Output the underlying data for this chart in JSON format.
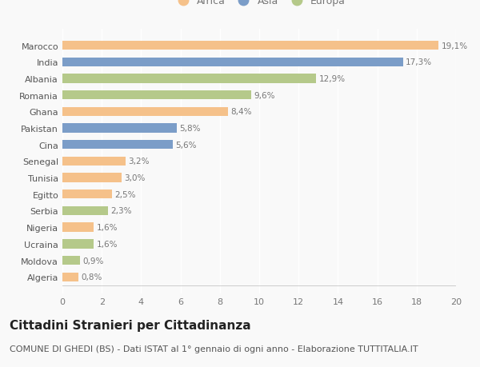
{
  "categories": [
    "Algeria",
    "Moldova",
    "Ucraina",
    "Nigeria",
    "Serbia",
    "Egitto",
    "Tunisia",
    "Senegal",
    "Cina",
    "Pakistan",
    "Ghana",
    "Romania",
    "Albania",
    "India",
    "Marocco"
  ],
  "values": [
    0.8,
    0.9,
    1.6,
    1.6,
    2.3,
    2.5,
    3.0,
    3.2,
    5.6,
    5.8,
    8.4,
    9.6,
    12.9,
    17.3,
    19.1
  ],
  "labels": [
    "0,8%",
    "0,9%",
    "1,6%",
    "1,6%",
    "2,3%",
    "2,5%",
    "3,0%",
    "3,2%",
    "5,6%",
    "5,8%",
    "8,4%",
    "9,6%",
    "12,9%",
    "17,3%",
    "19,1%"
  ],
  "continents": [
    "Africa",
    "Europa",
    "Europa",
    "Africa",
    "Europa",
    "Africa",
    "Africa",
    "Africa",
    "Asia",
    "Asia",
    "Africa",
    "Europa",
    "Europa",
    "Asia",
    "Africa"
  ],
  "colors": {
    "Africa": "#F5C18A",
    "Asia": "#7B9DC8",
    "Europa": "#B5C98A"
  },
  "xlim": [
    0,
    20
  ],
  "xticks": [
    0,
    2,
    4,
    6,
    8,
    10,
    12,
    14,
    16,
    18,
    20
  ],
  "title": "Cittadini Stranieri per Cittadinanza",
  "subtitle": "COMUNE DI GHEDI (BS) - Dati ISTAT al 1° gennaio di ogni anno - Elaborazione TUTTITALIA.IT",
  "background_color": "#f9f9f9",
  "bar_height": 0.55,
  "title_fontsize": 11,
  "subtitle_fontsize": 8,
  "label_fontsize": 7.5,
  "tick_fontsize": 8,
  "legend_fontsize": 9
}
